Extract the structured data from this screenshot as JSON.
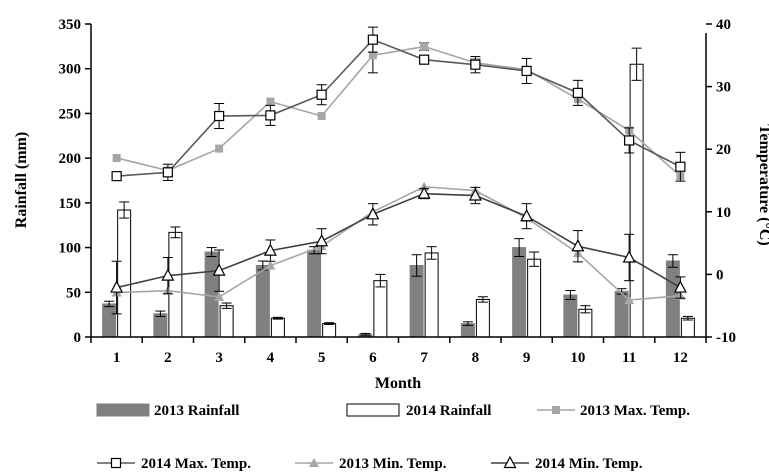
{
  "chart_data": {
    "type": "bar+line",
    "xlabel": "Month",
    "ylabel_left": "Rainfall (mm)",
    "ylabel_right": "Temperature (°C)",
    "categories": [
      "1",
      "2",
      "3",
      "4",
      "5",
      "6",
      "7",
      "8",
      "9",
      "10",
      "11",
      "12"
    ],
    "ylim_left": [
      0,
      350
    ],
    "yticks_left": [
      "0",
      "50",
      "100",
      "150",
      "200",
      "250",
      "300",
      "350"
    ],
    "ylim_right": [
      -10,
      40
    ],
    "yticks_right": [
      "-10",
      "0",
      "10",
      "20",
      "30",
      "40"
    ],
    "legend_position": "bottom",
    "bar_series": [
      {
        "name": "2013 Rainfall",
        "color": "#808080",
        "fill": "#808080",
        "values": [
          37,
          26,
          95,
          80,
          97,
          3,
          80,
          15,
          100,
          47,
          51,
          85
        ],
        "errors": [
          3,
          3,
          5,
          5,
          4,
          1,
          12,
          2,
          10,
          5,
          3,
          7
        ]
      },
      {
        "name": "2014 Rainfall",
        "color": "#000000",
        "fill": "#ffffff",
        "values": [
          142,
          117,
          35,
          21,
          15,
          63,
          94,
          42,
          87,
          31,
          305,
          21
        ],
        "errors": [
          9,
          6,
          3,
          1,
          1,
          7,
          7,
          3,
          8,
          4,
          18,
          2
        ]
      }
    ],
    "line_series": [
      {
        "name": "2013 Max. Temp.",
        "color": "#a6a6a6",
        "marker": "filled-square",
        "values": [
          18.6,
          16.6,
          20.1,
          27.6,
          25.3,
          35.0,
          36.4,
          33.8,
          32.7,
          28.0,
          23.0,
          15.7
        ],
        "errors": [
          0,
          0,
          0,
          0,
          0,
          2.8,
          0.6,
          0.6,
          0,
          0,
          0,
          0
        ]
      },
      {
        "name": "2014 Max. Temp.",
        "color": "#595959",
        "marker": "open-square",
        "values": [
          15.7,
          16.3,
          25.3,
          25.4,
          28.7,
          37.5,
          34.3,
          33.5,
          32.5,
          29.0,
          21.4,
          17.2
        ],
        "errors": [
          0,
          1.3,
          2.0,
          1.6,
          1.6,
          2.0,
          0,
          1.3,
          2.0,
          2.0,
          2.0,
          2.3
        ]
      },
      {
        "name": "2013 Min. Temp.",
        "color": "#a6a6a6",
        "marker": "filled-triangle",
        "values": [
          -2.9,
          -2.6,
          -3.6,
          1.4,
          4.5,
          10.0,
          14.0,
          13.4,
          9.0,
          3.4,
          -4.1,
          -3.4
        ],
        "errors": [
          0,
          0,
          0,
          0,
          0,
          0,
          0,
          0,
          0,
          0,
          0,
          0
        ]
      },
      {
        "name": "2014 Min. Temp.",
        "color": "#404040",
        "marker": "open-triangle",
        "values": [
          -2.1,
          -0.2,
          0.6,
          3.8,
          5.3,
          9.6,
          12.9,
          12.6,
          9.3,
          4.5,
          2.7,
          -2.1
        ],
        "errors": [
          4.2,
          2.9,
          3.3,
          1.7,
          2.0,
          1.7,
          0.8,
          1.3,
          2.0,
          2.5,
          3.7,
          1.7
        ]
      }
    ],
    "legend_entries": [
      "2013 Rainfall",
      "2014 Rainfall",
      "2013 Max. Temp.",
      "2014 Max. Temp.",
      "2013 Min. Temp.",
      "2014 Min. Temp."
    ]
  }
}
